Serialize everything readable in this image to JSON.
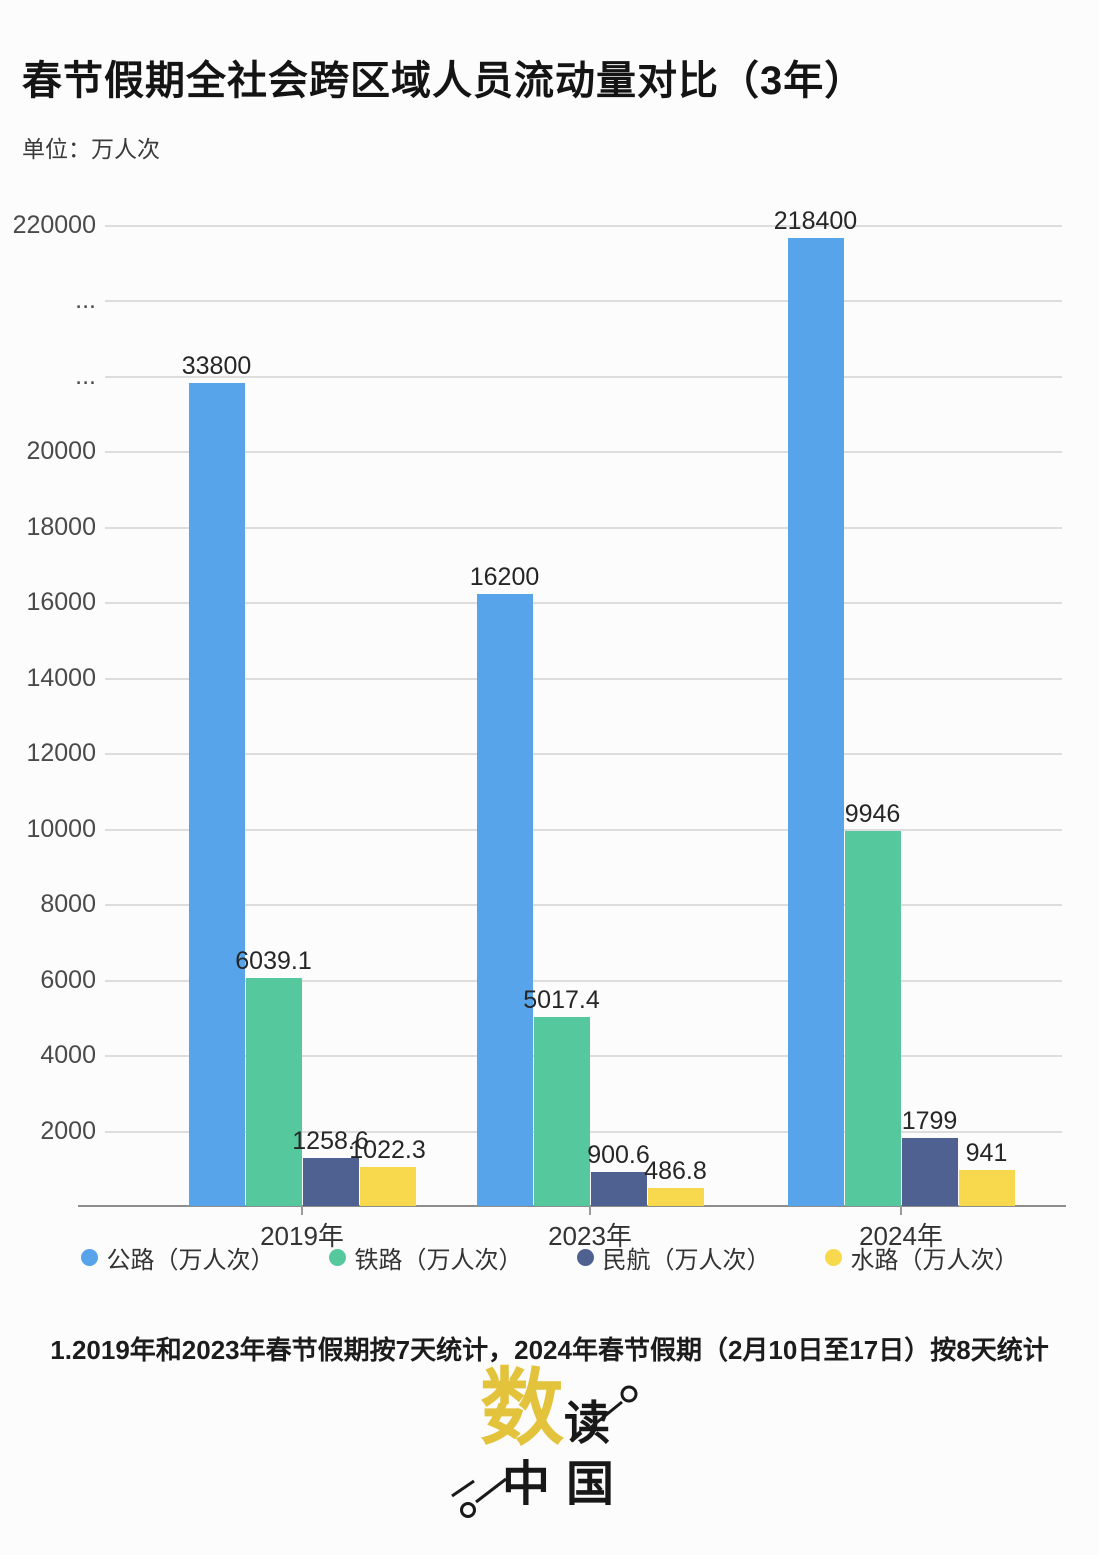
{
  "header": {
    "title": "春节假期全社会跨区域人员流动量对比（3年）",
    "unit_label": "单位：万人次"
  },
  "chart_data": {
    "type": "bar",
    "title": "春节假期全社会跨区域人员流动量对比（3年）",
    "unit": "万人次",
    "categories": [
      "2019年",
      "2023年",
      "2024年"
    ],
    "series": [
      {
        "key": "highway",
        "name": "公路（万人次）",
        "color": "#57a4ea",
        "values": [
          33800,
          16200,
          218400
        ]
      },
      {
        "key": "railway",
        "name": "铁路（万人次）",
        "color": "#55c99d",
        "values": [
          6039.1,
          5017.4,
          9946
        ]
      },
      {
        "key": "civil-aviation",
        "name": "民航（万人次）",
        "color": "#4e6190",
        "values": [
          1258.6,
          900.6,
          1799
        ]
      },
      {
        "key": "waterway",
        "name": "水路（万人次）",
        "color": "#f8d94e",
        "values": [
          1022.3,
          486.8,
          941
        ]
      }
    ],
    "y_axis": {
      "ticks_top_to_bottom": [
        "220000",
        "...",
        "...",
        "20000",
        "18000",
        "16000",
        "14000",
        "12000",
        "10000",
        "8000",
        "6000",
        "4000",
        "2000"
      ],
      "broken_axis": true,
      "linear_max": 20000,
      "top_value": 220000
    },
    "legend_position": "bottom",
    "grid": true
  },
  "footer": {
    "note": "1.2019年和2023年春节假期按7天统计，2024年春节假期（2月10日至17日）按8天统计"
  },
  "logo": {
    "char_main": "数",
    "char_secondary": "读",
    "char_bottom": "中国",
    "accent_color": "#e4c33c"
  }
}
